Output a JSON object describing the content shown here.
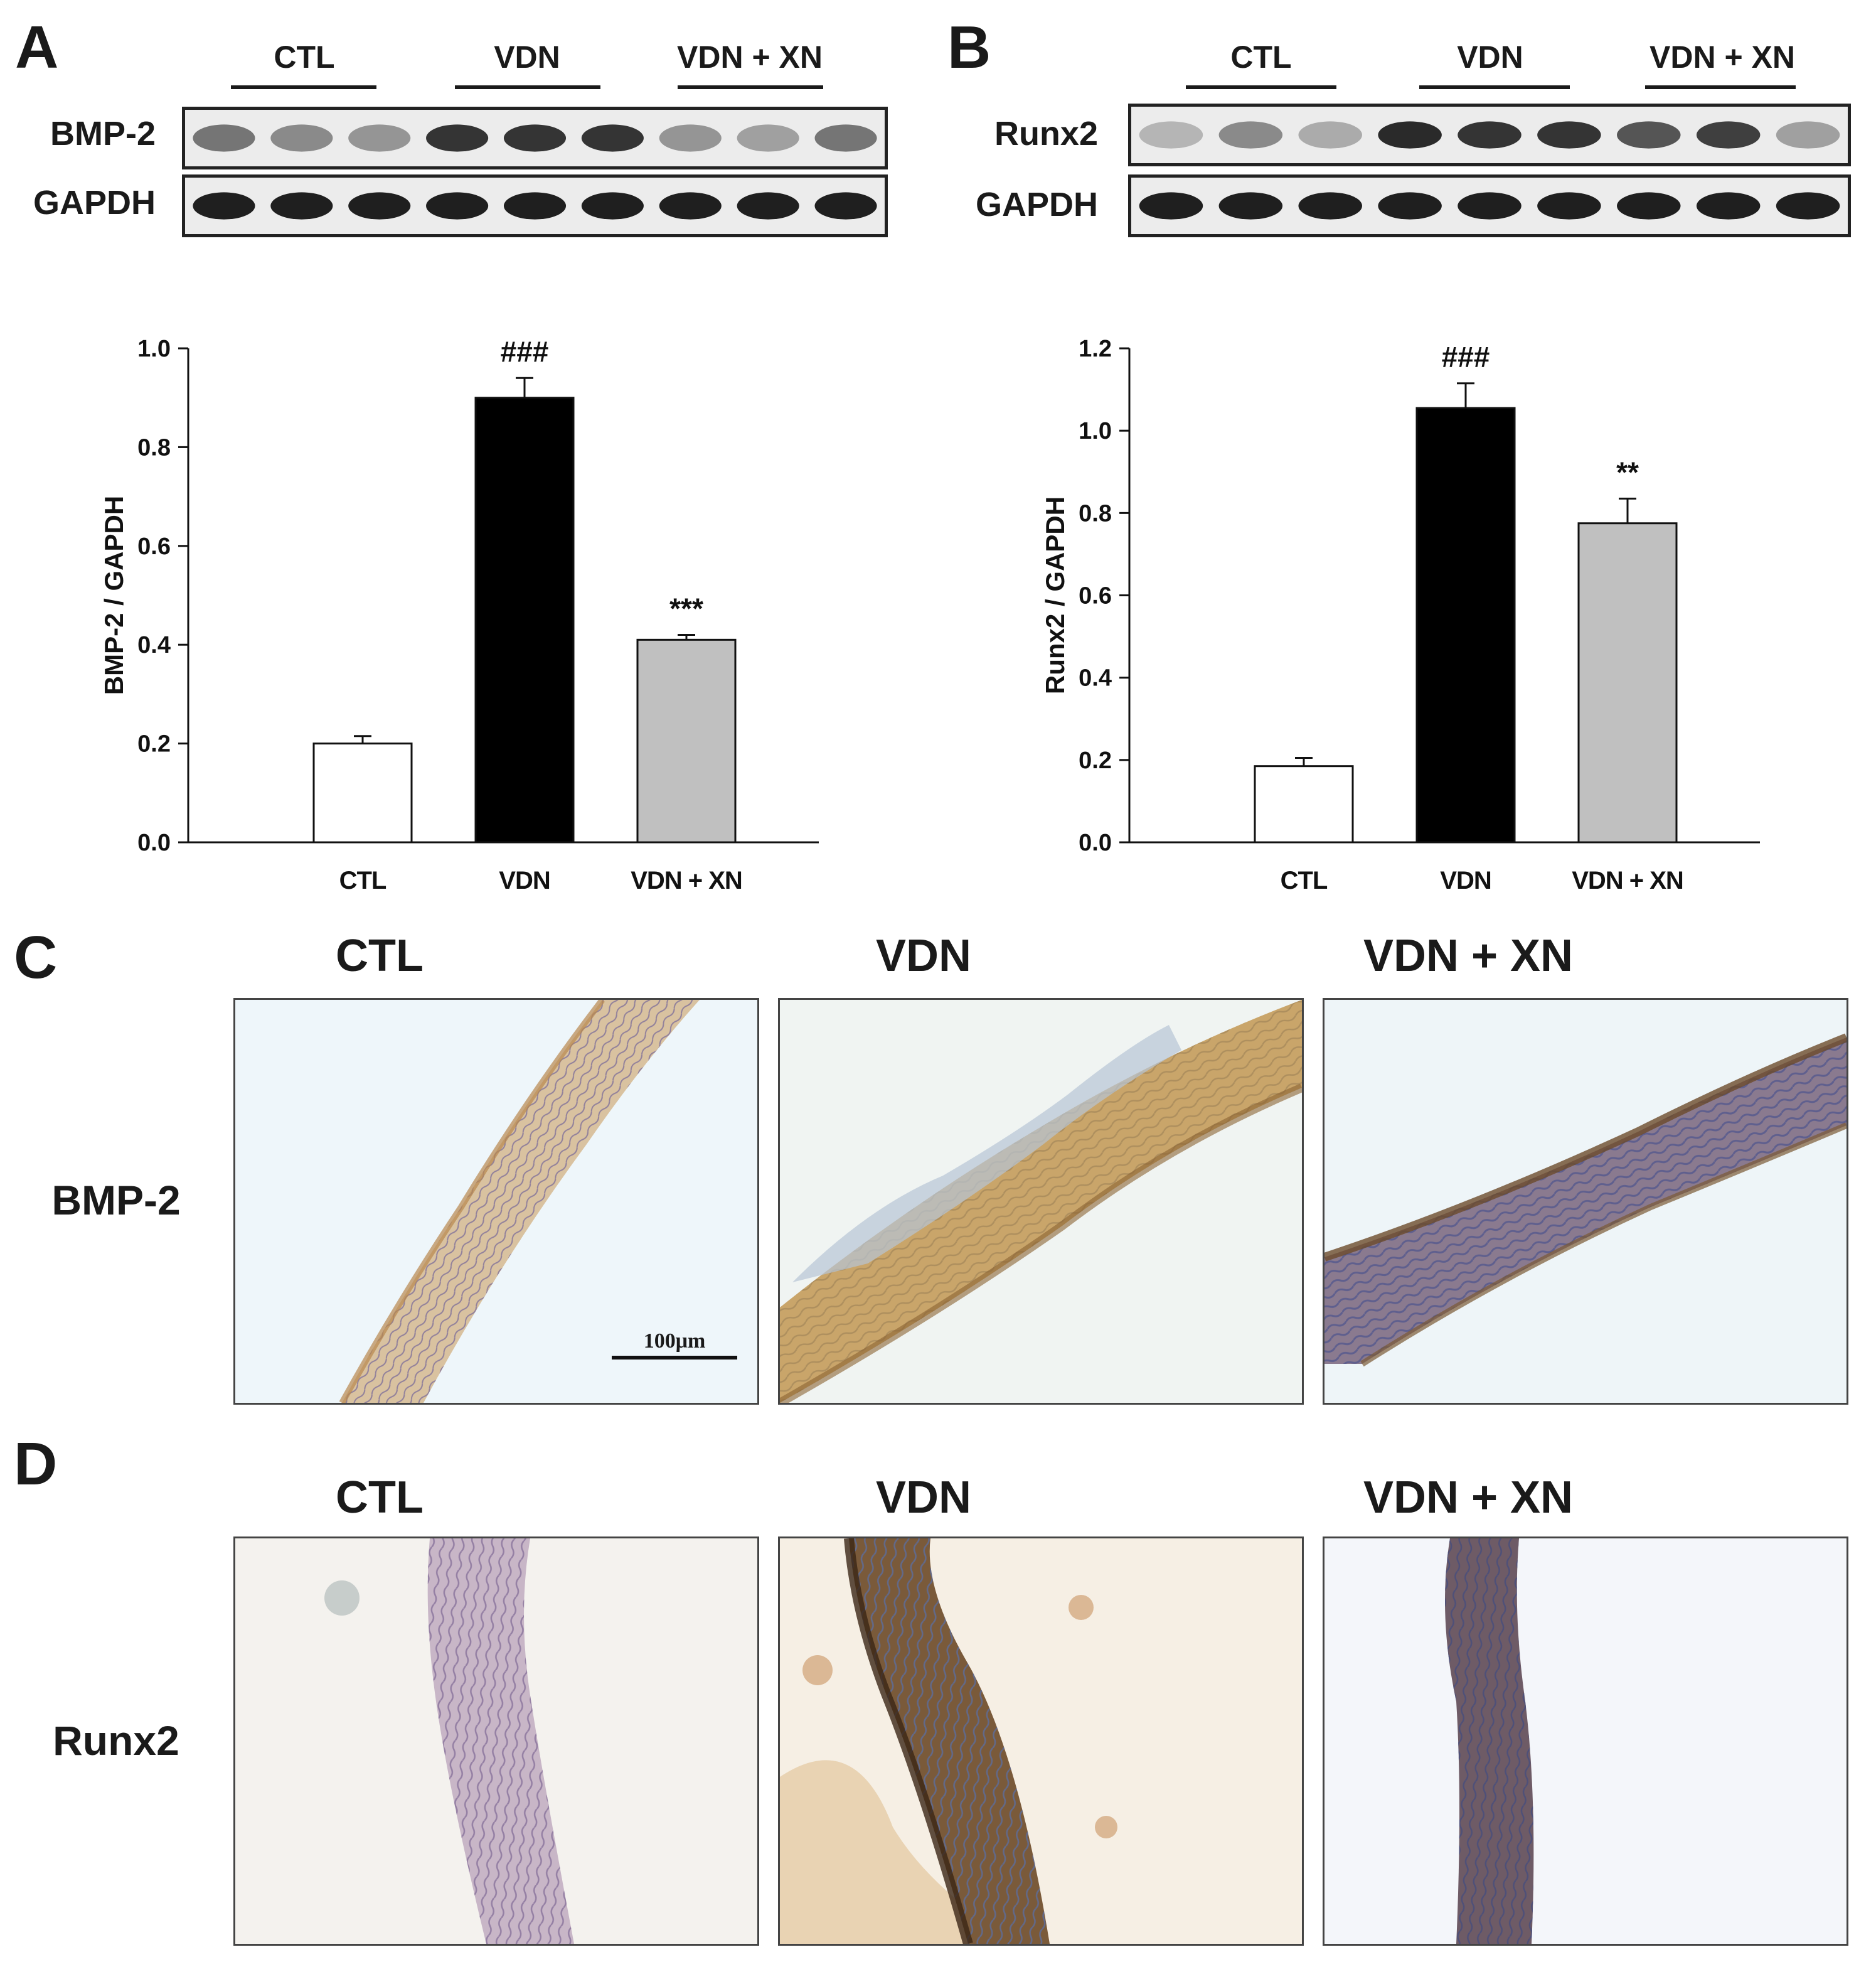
{
  "panels": {
    "a": {
      "letter": "A",
      "group_labels": [
        "CTL",
        "VDN",
        "VDN + XN"
      ],
      "blot_rows": [
        {
          "label": "BMP-2",
          "intensity": [
            0.55,
            0.45,
            0.4,
            0.85,
            0.85,
            0.85,
            0.4,
            0.35,
            0.55
          ]
        },
        {
          "label": "GAPDH",
          "intensity": [
            0.95,
            0.95,
            0.95,
            0.95,
            0.95,
            0.95,
            0.95,
            0.95,
            0.95
          ]
        }
      ]
    },
    "b": {
      "letter": "B",
      "group_labels": [
        "CTL",
        "VDN",
        "VDN + XN"
      ],
      "blot_rows": [
        {
          "label": "Runx2",
          "intensity": [
            0.25,
            0.45,
            0.3,
            0.9,
            0.85,
            0.85,
            0.7,
            0.8,
            0.35
          ]
        },
        {
          "label": "GAPDH",
          "intensity": [
            0.95,
            0.95,
            0.95,
            0.95,
            0.95,
            0.95,
            0.95,
            0.95,
            0.95
          ]
        }
      ]
    },
    "c": {
      "letter": "C",
      "row_label": "BMP-2",
      "column_titles": [
        "CTL",
        "VDN",
        "VDN + XN"
      ],
      "scale_bar": "100μm"
    },
    "d": {
      "letter": "D",
      "row_label": "Runx2",
      "column_titles": [
        "CTL",
        "VDN",
        "VDN + XN"
      ]
    }
  },
  "chart_data": [
    {
      "type": "bar",
      "categories": [
        "CTL",
        "VDN",
        "VDN + XN"
      ],
      "values": [
        0.2,
        0.9,
        0.41
      ],
      "errors": [
        0.015,
        0.04,
        0.01
      ],
      "annotations": [
        "",
        "###",
        "***"
      ],
      "bar_colors": [
        "#ffffff",
        "#000000",
        "#c0c0c0"
      ],
      "ylabel": "BMP-2 / GAPDH",
      "ylim": [
        0,
        1.0
      ],
      "yticks": [
        "0.0",
        "0.2",
        "0.4",
        "0.6",
        "0.8",
        "1.0"
      ]
    },
    {
      "type": "bar",
      "categories": [
        "CTL",
        "VDN",
        "VDN + XN"
      ],
      "values": [
        0.185,
        1.055,
        0.775
      ],
      "errors": [
        0.02,
        0.06,
        0.06
      ],
      "annotations": [
        "",
        "###",
        "**"
      ],
      "bar_colors": [
        "#ffffff",
        "#000000",
        "#c0c0c0"
      ],
      "ylabel": "Runx2 / GAPDH",
      "ylim": [
        0,
        1.2
      ],
      "yticks": [
        "0.0",
        "0.2",
        "0.4",
        "0.6",
        "0.8",
        "1.0",
        "1.2"
      ]
    }
  ]
}
